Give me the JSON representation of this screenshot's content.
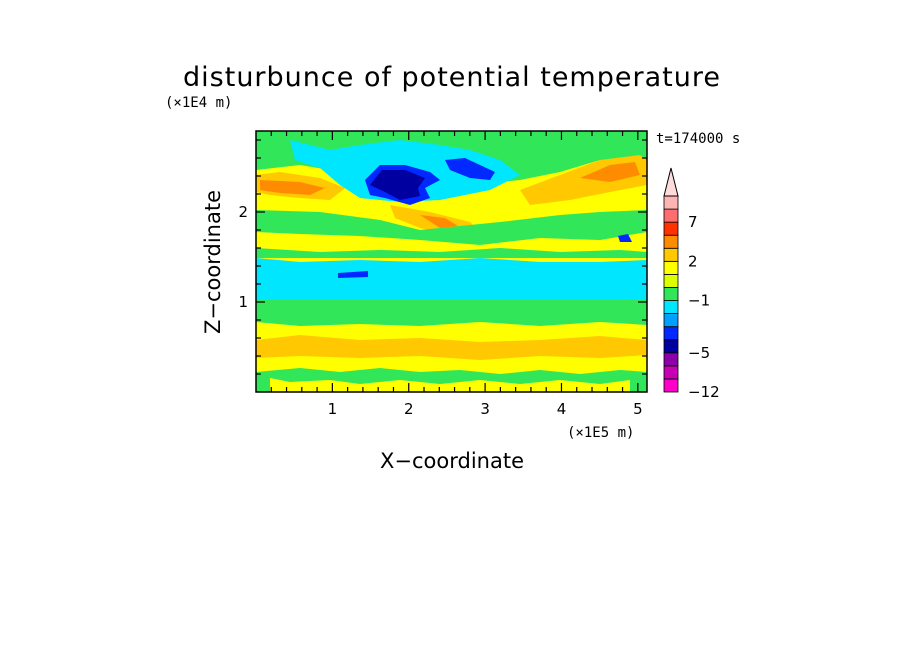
{
  "chart_data": {
    "type": "heatmap",
    "title": "disturbunce of potential temperature",
    "xlabel": "X−coordinate",
    "ylabel": "Z−coordinate",
    "x_scale_label": "(×1E5 m)",
    "y_scale_label": "(×1E4 m)",
    "time_label": "t=174000 s",
    "xlim": [
      0,
      5.12
    ],
    "ylim": [
      0,
      2.9
    ],
    "x_ticks": [
      "1",
      "2",
      "3",
      "4",
      "5"
    ],
    "y_ticks": [
      "1",
      "2"
    ],
    "colorbar": {
      "levels": [
        -12,
        -9,
        -7,
        -5,
        -4,
        -3,
        -2,
        -1,
        0,
        1,
        2,
        3,
        5,
        7,
        9
      ],
      "labels": [
        "−12",
        "−5",
        "−1",
        "2",
        "7"
      ],
      "colors": [
        "#ff00c8",
        "#c800b4",
        "#8c00aa",
        "#0000a0",
        "#0028ff",
        "#00a0ff",
        "#00e6ff",
        "#32e65a",
        "#dcff00",
        "#ffff00",
        "#ffc800",
        "#ff8c00",
        "#ff3200",
        "#ff6e6e",
        "#ffb4b4"
      ],
      "top_arrow_color": "#ffdcdc"
    },
    "fields": [
      {
        "name": "bottom-band",
        "value": 1.5
      },
      {
        "name": "lower-green-band",
        "value": 0
      },
      {
        "name": "middle-cyan-band",
        "value": -1.5
      },
      {
        "name": "upper-green-band",
        "value": 0
      },
      {
        "name": "upper-yellow-band",
        "value": 1.5
      },
      {
        "name": "left-orange-patch",
        "value": 3
      },
      {
        "name": "right-orange-patch",
        "value": 4
      },
      {
        "name": "blue-cluster",
        "value": -4.5
      },
      {
        "name": "navy-core",
        "value": -5
      }
    ]
  }
}
